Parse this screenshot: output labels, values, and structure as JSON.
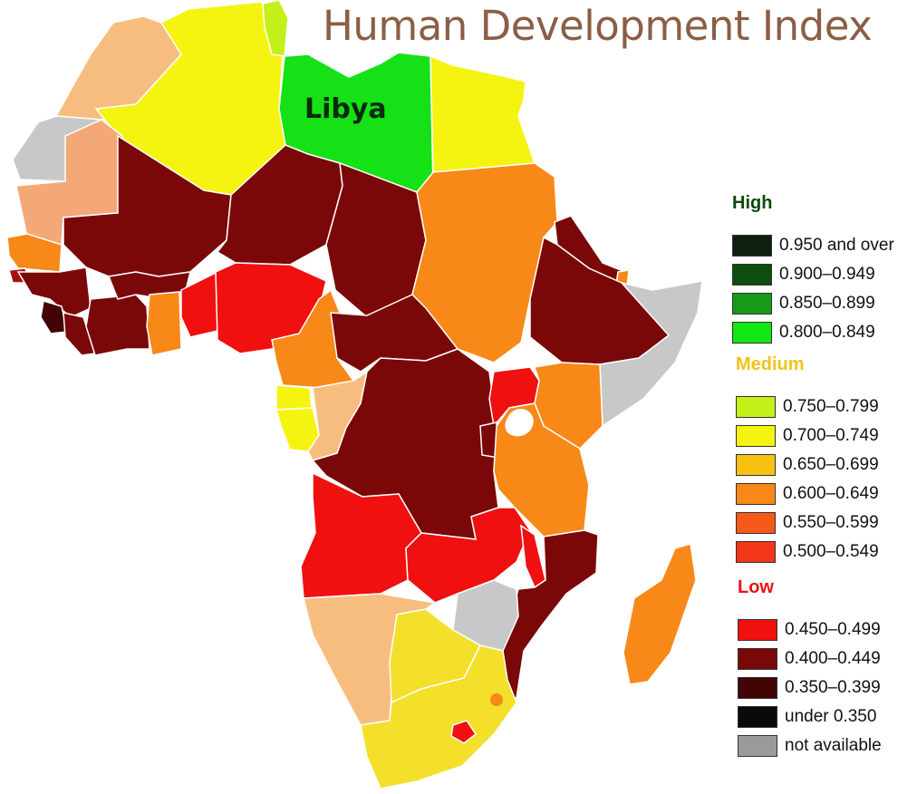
{
  "title": "Human Development Index",
  "map_label": "Libya",
  "colors": {
    "high_head": "#0b4a0b",
    "medium_head": "#f2c21a",
    "low_head": "#e61414",
    "na": "#c8c8c8"
  },
  "legend": {
    "high": {
      "heading": "High",
      "items": [
        {
          "label": "0.950 and over",
          "color": "#0f1f0f"
        },
        {
          "label": "0.900–0.949",
          "color": "#0e4d0e"
        },
        {
          "label": "0.850–0.899",
          "color": "#189a18"
        },
        {
          "label": "0.800–0.849",
          "color": "#10e810"
        }
      ]
    },
    "medium": {
      "heading": "Medium",
      "items": [
        {
          "label": "0.750–0.799",
          "color": "#c4f01a"
        },
        {
          "label": "0.700–0.749",
          "color": "#f4f410"
        },
        {
          "label": "0.650–0.699",
          "color": "#f8c010"
        },
        {
          "label": "0.600–0.649",
          "color": "#f88818"
        },
        {
          "label": "0.550–0.599",
          "color": "#f55a18"
        },
        {
          "label": "0.500–0.549",
          "color": "#f23818"
        }
      ]
    },
    "low": {
      "heading": "Low",
      "items": [
        {
          "label": "0.450–0.499",
          "color": "#f01010"
        },
        {
          "label": "0.400–0.449",
          "color": "#7a0808"
        },
        {
          "label": "0.350–0.399",
          "color": "#420404"
        },
        {
          "label": "under 0.350",
          "color": "#0a0a0a"
        },
        {
          "label": "not available",
          "color": "#9a9a9a"
        }
      ]
    }
  }
}
